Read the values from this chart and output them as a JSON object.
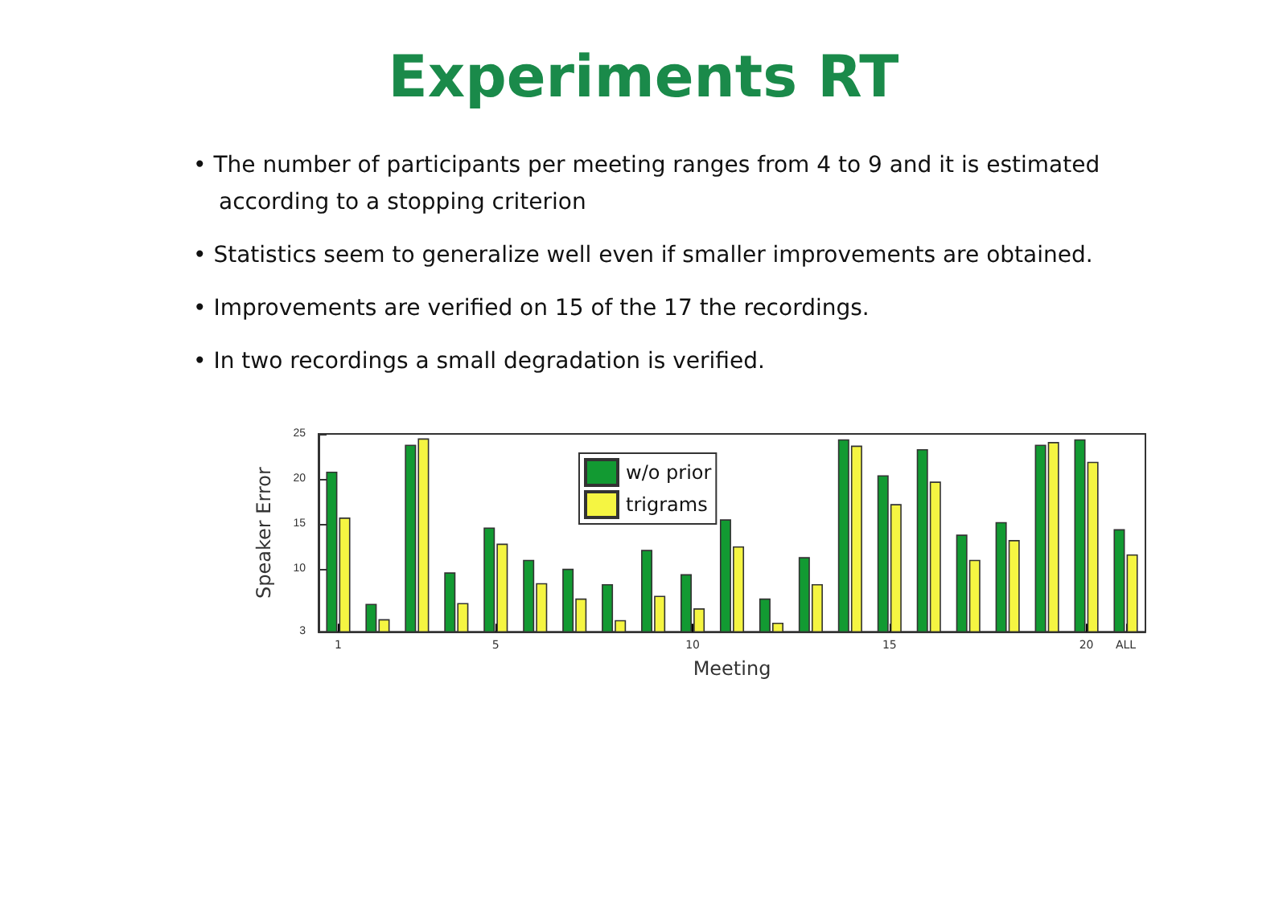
{
  "chart_data": {
    "type": "bar",
    "title": "Experiments RT",
    "annotations": [
      "• The number of participants per meeting ranges from 4 to 9 and it is estimated according to a stopping criterion",
      "• Statistics seem to generalize well even if smaller improvements are obtained.",
      "• Improvements are verified on 15 of the 17 the recordings.",
      "• In two recordings a small degradation is verified."
    ],
    "xlabel": "Meeting",
    "ylabel": "Speaker Error",
    "categories": [
      "1",
      null,
      null,
      null,
      "5",
      null,
      null,
      null,
      null,
      "10",
      null,
      null,
      null,
      null,
      "15",
      null,
      null,
      null,
      null,
      "20",
      "ALL"
    ],
    "series": [
      {
        "name": "w/o prior",
        "color": "#129a32",
        "values": [
          20.8,
          6.1,
          23.8,
          9.6,
          14.6,
          11.0,
          10.0,
          8.3,
          12.1,
          9.4,
          15.5,
          6.7,
          11.3,
          24.4,
          20.4,
          23.3,
          13.8,
          15.2,
          23.8,
          24.4,
          14.4
        ]
      },
      {
        "name": "trigrams",
        "color": "#f5f542",
        "values": [
          15.7,
          4.4,
          24.5,
          6.2,
          12.8,
          8.4,
          6.7,
          4.3,
          7.0,
          5.6,
          12.5,
          4.0,
          8.3,
          23.7,
          17.2,
          19.7,
          11.0,
          13.2,
          24.1,
          21.9,
          11.6
        ]
      }
    ],
    "ylim": [
      3,
      25
    ],
    "yticks": [
      3,
      10,
      15,
      20,
      25
    ],
    "grid": false,
    "legend": "top"
  }
}
